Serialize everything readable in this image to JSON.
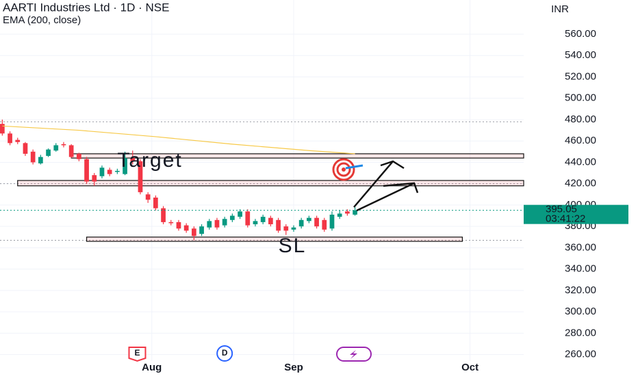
{
  "chart_data": {
    "type": "candlestick",
    "title": "AARTI Industries Ltd · 1D · NSE",
    "currency": "INR",
    "up_color": "#089981",
    "down_color": "#f23645",
    "open": [
      476,
      467,
      461,
      458,
      450,
      439,
      446,
      451,
      457,
      456,
      448,
      443,
      428,
      427,
      433,
      431,
      429,
      444,
      441,
      410,
      407,
      397,
      384,
      384,
      381,
      378,
      373,
      379,
      386,
      381,
      386,
      389,
      394,
      382,
      384,
      388,
      386,
      380,
      377,
      380,
      385,
      388,
      386,
      378,
      389,
      394,
      391
    ],
    "high": [
      480,
      469,
      463,
      459,
      452,
      447,
      453,
      458,
      459,
      457,
      449,
      445,
      430,
      437,
      435,
      434,
      450,
      451,
      443,
      412,
      409,
      399,
      386,
      386,
      383,
      380,
      382,
      387,
      388,
      389,
      392,
      396,
      396,
      387,
      391,
      390,
      388,
      382,
      381,
      388,
      390,
      390,
      388,
      394,
      395,
      396,
      398
    ],
    "low": [
      465,
      456,
      457,
      446,
      438,
      438,
      445,
      450,
      454,
      444,
      441,
      420,
      418,
      425,
      427,
      429,
      428,
      438,
      410,
      402,
      395,
      382,
      381,
      376,
      374,
      367,
      371,
      377,
      377,
      379,
      384,
      387,
      379,
      380,
      382,
      380,
      374,
      372,
      375,
      378,
      383,
      378,
      375,
      376,
      387,
      390,
      390
    ],
    "close": [
      467,
      458,
      459,
      448,
      440,
      445,
      452,
      456,
      456,
      445,
      443,
      422,
      422,
      435,
      429,
      432,
      444,
      441,
      412,
      405,
      397,
      384,
      383,
      378,
      376,
      371,
      380,
      385,
      379,
      387,
      390,
      394,
      381,
      385,
      389,
      382,
      376,
      376,
      379,
      386,
      388,
      380,
      377,
      391,
      392,
      392,
      395.05
    ],
    "ema": {
      "name": "EMA (200, close)",
      "color": "#f7c948",
      "x": [
        0,
        10,
        20,
        30,
        40,
        46
      ],
      "values": [
        474,
        470,
        464,
        457,
        451,
        448
      ]
    },
    "xlim": [
      -0.3,
      68
    ],
    "xticks": [
      {
        "value": 19.5,
        "label": "Aug"
      },
      {
        "value": 38,
        "label": "Sep"
      },
      {
        "value": 61,
        "label": "Oct"
      }
    ],
    "ylim": [
      254,
      592
    ],
    "yticks": [
      {
        "value": 260,
        "label": "260.00"
      },
      {
        "value": 280,
        "label": "280.00"
      },
      {
        "value": 300,
        "label": "300.00"
      },
      {
        "value": 320,
        "label": "320.00"
      },
      {
        "value": 340,
        "label": "340.00"
      },
      {
        "value": 360,
        "label": "360.00"
      },
      {
        "value": 380,
        "label": "380.00"
      },
      {
        "value": 400,
        "label": "400.00"
      },
      {
        "value": 420,
        "label": "420.00"
      },
      {
        "value": 440,
        "label": "440.00"
      },
      {
        "value": 460,
        "label": "460.00"
      },
      {
        "value": 480,
        "label": "480.00"
      },
      {
        "value": 500,
        "label": "500.00"
      },
      {
        "value": 520,
        "label": "520.00"
      },
      {
        "value": 540,
        "label": "540.00"
      },
      {
        "value": 560,
        "label": "560.00"
      }
    ],
    "hlines": [
      478,
      420,
      367
    ],
    "zones": [
      {
        "low": 444,
        "high": 448,
        "from": 9,
        "to": 68
      },
      {
        "low": 418,
        "high": 423,
        "from": 2,
        "to": 68
      },
      {
        "low": 366,
        "high": 370,
        "from": 11,
        "to": 60
      }
    ],
    "countdown": "03:41:22",
    "annotations": [
      {
        "text": "Target",
        "x": 15,
        "y": 441
      },
      {
        "text": "SL",
        "x": 36,
        "y": 361
      }
    ],
    "events": [
      {
        "label": "E",
        "x": 17.6
      },
      {
        "label": "D",
        "x": 29
      }
    ]
  }
}
